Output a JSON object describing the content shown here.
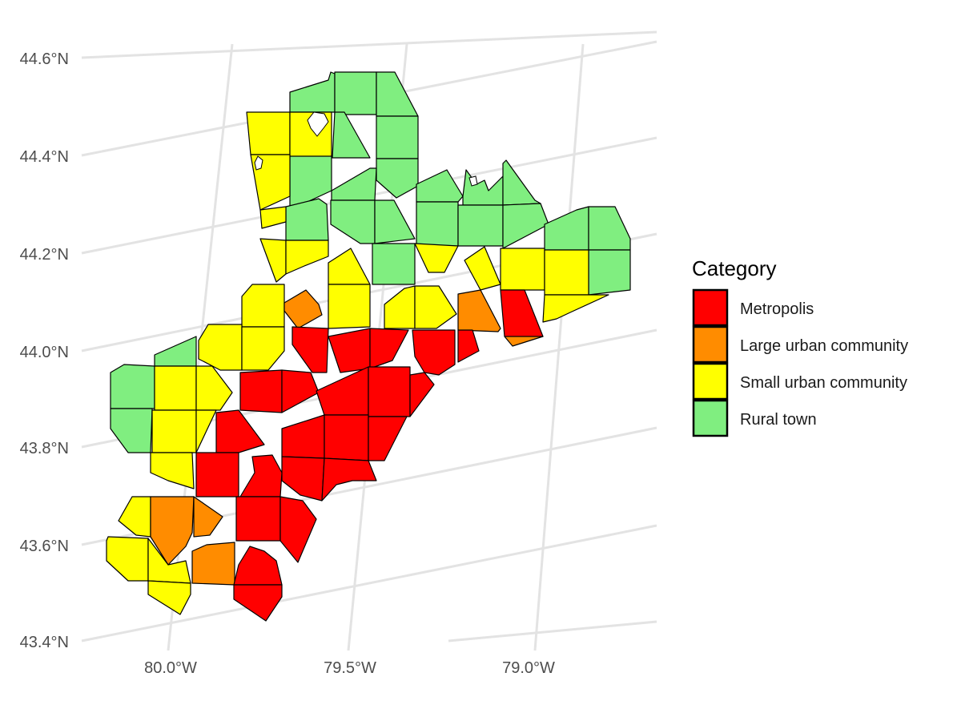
{
  "map": {
    "lat_labels": [
      "44.6°N",
      "44.4°N",
      "44.2°N",
      "44.0°N",
      "43.8°N",
      "43.6°N",
      "43.4°N"
    ],
    "lon_labels": [
      "80.0°W",
      "79.5°W",
      "79.0°W"
    ]
  },
  "legend": {
    "title": "Category",
    "items": [
      {
        "label": "Metropolis",
        "color": "#FF0000"
      },
      {
        "label": "Large urban community",
        "color": "#FF8C00"
      },
      {
        "label": "Small urban community",
        "color": "#FFFF00"
      },
      {
        "label": "Rural town",
        "color": "#80EE80"
      }
    ]
  }
}
